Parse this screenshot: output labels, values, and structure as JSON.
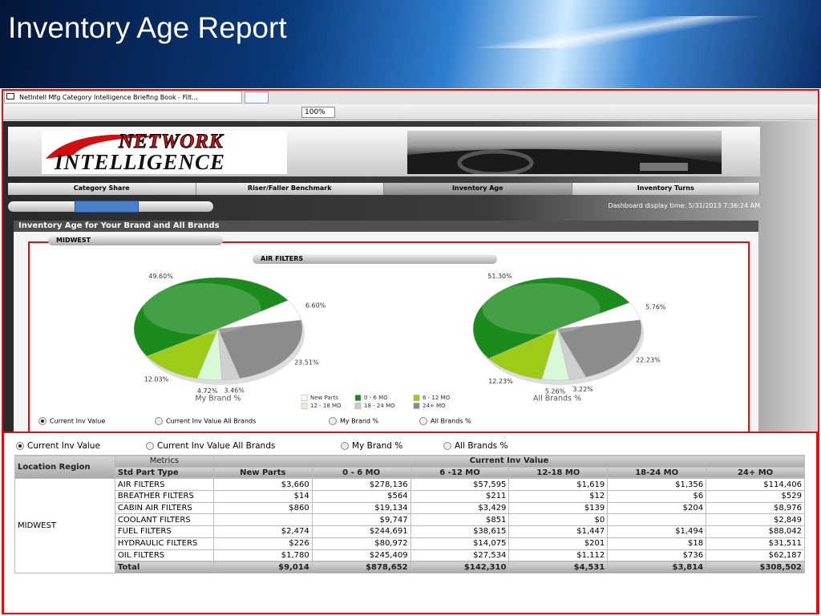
{
  "slide": {
    "title": "Inventory Age Report"
  },
  "window": {
    "tab": "NetIntell Mfg Category Intelligence Briefing Book - Filt...",
    "zoom": "100%"
  },
  "dashboard": {
    "logo": [
      "NETWORK",
      "INTELLIGENCE"
    ],
    "tabs": [
      "Category Share",
      "Riser/Faller Benchmark",
      "Inventory Age",
      "Inventory Turns"
    ],
    "display_time": "Dashboard display time: 5/31/2013 7:36:24 AM",
    "panel_title": "Inventory Age for Your Brand and All Brands",
    "region": "MIDWEST",
    "product": "AIR FILTERS",
    "legend": [
      {
        "name": "New Parts",
        "color": "#ffffff"
      },
      {
        "name": "0 - 6 MO",
        "color": "#1b8c1b"
      },
      {
        "name": "6 - 12 MO",
        "color": "#9ccc18"
      },
      {
        "name": "12 - 18 MO",
        "color": "#d9f7d9"
      },
      {
        "name": "18 - 24 MO",
        "color": "#cfcfcf"
      },
      {
        "name": "24+ MO",
        "color": "#8c8c8c"
      }
    ],
    "pies": [
      {
        "title": "My Brand %",
        "values": [
          6.6,
          49.6,
          12.03,
          4.72,
          3.46,
          23.51
        ],
        "value_labels": [
          "6.60%",
          "49.60%",
          "12.03%",
          "4.72%",
          "3.46%",
          "23.51%"
        ]
      },
      {
        "title": "All Brands %",
        "values": [
          5.76,
          51.3,
          12.23,
          5.26,
          3.22,
          22.23
        ],
        "value_labels": [
          "5.76%",
          "51.30%",
          "12.23%",
          "5.26%",
          "3.22%",
          "22.23%"
        ]
      }
    ],
    "radios": [
      "Current Inv Value",
      "Current Inv Value All Brands",
      "My Brand %",
      "All Brands %"
    ]
  },
  "table_view": {
    "radios": [
      "Current Inv Value",
      "Current Inv Value All Brands",
      "My Brand %",
      "All Brands %"
    ],
    "table": {
      "location_header": "Location Region",
      "metrics_header": "Metrics",
      "group_header": "Current Inv Value",
      "part_header": "Std Part Type",
      "columns": [
        "New Parts",
        "0 - 6 MO",
        "6 -12 MO",
        "12-18 MO",
        "18-24 MO",
        "24+   MO"
      ],
      "region": "MIDWEST",
      "rows": [
        {
          "part": "AIR FILTERS",
          "cells": [
            "$3,660",
            "$278,136",
            "$57,595",
            "$1,619",
            "$1,356",
            "$114,406"
          ]
        },
        {
          "part": "BREATHER FILTERS",
          "cells": [
            "$14",
            "$564",
            "$211",
            "$12",
            "$6",
            "$529"
          ]
        },
        {
          "part": "CABIN AIR FILTERS",
          "cells": [
            "$860",
            "$19,134",
            "$3,429",
            "$139",
            "$204",
            "$8,976"
          ]
        },
        {
          "part": "COOLANT FILTERS",
          "cells": [
            null,
            "$9,747",
            "$851",
            "$0",
            null,
            "$2,849"
          ]
        },
        {
          "part": "FUEL FILTERS",
          "cells": [
            "$2,474",
            "$244,691",
            "$38,615",
            "$1,447",
            "$1,494",
            "$88,042"
          ]
        },
        {
          "part": "HYDRAULIC FILTERS",
          "cells": [
            "$226",
            "$80,972",
            "$14,075",
            "$201",
            "$18",
            "$31,511"
          ]
        },
        {
          "part": "OIL FILTERS",
          "cells": [
            "$1,780",
            "$245,409",
            "$27,534",
            "$1,112",
            "$736",
            "$62,187"
          ]
        }
      ],
      "total": {
        "part": "Total",
        "cells": [
          "$9,014",
          "$878,652",
          "$142,310",
          "$4,531",
          "$3,814",
          "$308,502"
        ]
      }
    }
  }
}
